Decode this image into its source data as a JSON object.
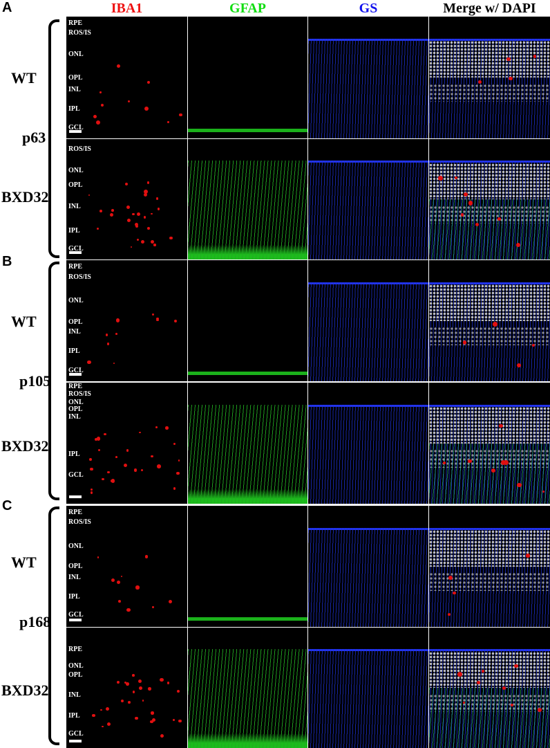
{
  "columns": [
    {
      "label": "IBA1",
      "color": "#ee1111"
    },
    {
      "label": "GFAP",
      "color": "#11dd11"
    },
    {
      "label": "GS",
      "color": "#1111ee"
    },
    {
      "label": "Merge w/ DAPI",
      "color": "#000000"
    }
  ],
  "panels": [
    {
      "letter": "A",
      "age": "p63",
      "rows": [
        {
          "genotype": "WT",
          "layers": [
            "RPE",
            "ROS/IS",
            "ONL",
            "OPL",
            "INL",
            "IPL",
            "GCL"
          ]
        },
        {
          "genotype": "BXD32",
          "layers": [
            "ROS/IS",
            "ONL",
            "OPL",
            "INL",
            "IPL",
            "GCL"
          ]
        }
      ]
    },
    {
      "letter": "B",
      "age": "p105",
      "rows": [
        {
          "genotype": "WT",
          "layers": [
            "RPE",
            "ROS/IS",
            "ONL",
            "OPL",
            "INL",
            "IPL",
            "GCL"
          ]
        },
        {
          "genotype": "BXD32",
          "layers": [
            "RPE",
            "ROS/IS",
            "ONL",
            "OPL",
            "INL",
            "IPL",
            "GCL"
          ]
        }
      ]
    },
    {
      "letter": "C",
      "age": "p168",
      "rows": [
        {
          "genotype": "WT",
          "layers": [
            "RPE",
            "ROS/IS",
            "ONL",
            "OPL",
            "INL",
            "IPL",
            "GCL"
          ]
        },
        {
          "genotype": "BXD32",
          "layers": [
            "RPE",
            "ONL",
            "OPL",
            "INL",
            "IPL",
            "GCL"
          ]
        }
      ]
    }
  ],
  "stain_colors": {
    "iba1": "#e01010",
    "gfap": "#22dd22",
    "gs": "#2233ee",
    "dapi": "#d8d8d8"
  }
}
